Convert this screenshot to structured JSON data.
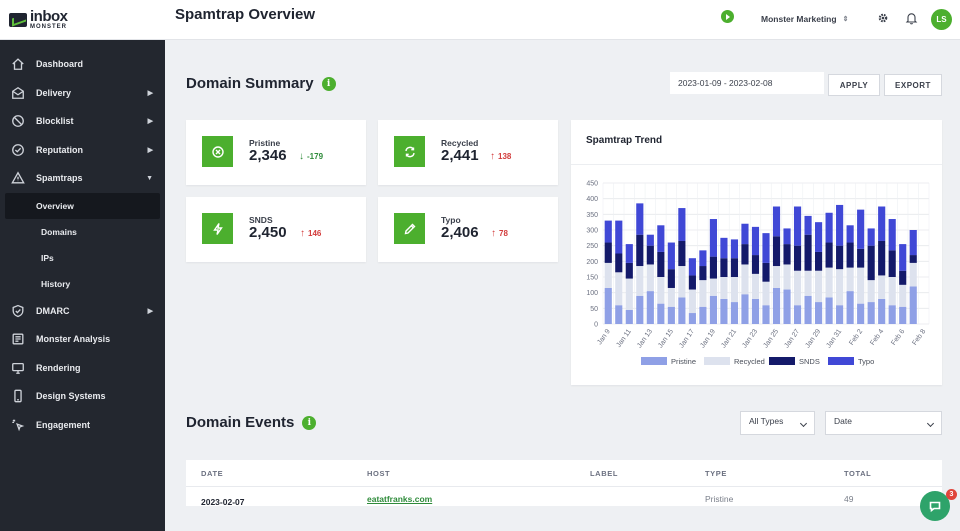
{
  "app": {
    "logo_main": "inbox",
    "logo_sub": "MONSTER",
    "page_title": "Spamtrap Overview"
  },
  "topbar": {
    "org_name": "Monster Marketing",
    "avatar_initials": "LS"
  },
  "sidebar": {
    "items": [
      {
        "label": "Dashboard",
        "icon": "home-icon"
      },
      {
        "label": "Delivery",
        "icon": "envelope-icon"
      },
      {
        "label": "Blocklist",
        "icon": "ban-icon"
      },
      {
        "label": "Reputation",
        "icon": "check-circle-icon"
      },
      {
        "label": "Spamtraps",
        "icon": "warning-icon"
      },
      {
        "label": "DMARC",
        "icon": "shield-icon"
      },
      {
        "label": "Monster Analysis",
        "icon": "analysis-icon"
      },
      {
        "label": "Rendering",
        "icon": "monitor-icon"
      },
      {
        "label": "Design Systems",
        "icon": "mobile-icon"
      },
      {
        "label": "Engagement",
        "icon": "cursor-click-icon"
      }
    ],
    "spamtrap_subitems": [
      "Overview",
      "Domains",
      "IPs",
      "History"
    ]
  },
  "summary": {
    "title": "Domain Summary",
    "date_range": "2023-01-09 - 2023-02-08",
    "apply_label": "APPLY",
    "export_label": "EXPORT",
    "cards": [
      {
        "label": "Pristine",
        "value": "2,346",
        "delta": "-179",
        "direction": "down",
        "icon": "x-circle-icon"
      },
      {
        "label": "Recycled",
        "value": "2,441",
        "delta": "138",
        "direction": "up",
        "icon": "recycle-icon"
      },
      {
        "label": "SNDS",
        "value": "2,450",
        "delta": "146",
        "direction": "up",
        "icon": "bolt-icon"
      },
      {
        "label": "Typo",
        "value": "2,406",
        "delta": "78",
        "direction": "up",
        "icon": "pencil-icon"
      }
    ]
  },
  "trend": {
    "title": "Spamtrap Trend"
  },
  "chart_data": {
    "type": "bar",
    "stacked": true,
    "title": "Spamtrap Trend",
    "x_tick_labels": [
      "Jan 9",
      "Jan 11",
      "Jan 13",
      "Jan 15",
      "Jan 17",
      "Jan 19",
      "Jan 21",
      "Jan 23",
      "Jan 25",
      "Jan 27",
      "Jan 29",
      "Jan 31",
      "Feb 2",
      "Feb 4",
      "Feb 6",
      "Feb 8"
    ],
    "categories": [
      "Jan 9",
      "Jan 10",
      "Jan 11",
      "Jan 12",
      "Jan 13",
      "Jan 14",
      "Jan 15",
      "Jan 16",
      "Jan 17",
      "Jan 18",
      "Jan 19",
      "Jan 20",
      "Jan 21",
      "Jan 22",
      "Jan 23",
      "Jan 24",
      "Jan 25",
      "Jan 26",
      "Jan 27",
      "Jan 28",
      "Jan 29",
      "Jan 30",
      "Jan 31",
      "Feb 1",
      "Feb 2",
      "Feb 3",
      "Feb 4",
      "Feb 5",
      "Feb 6",
      "Feb 7",
      "Feb 8"
    ],
    "ylim": [
      0,
      450
    ],
    "y_ticks": [
      0,
      50,
      100,
      150,
      200,
      250,
      300,
      350,
      400,
      450
    ],
    "grid": true,
    "legend_position": "bottom",
    "series": [
      {
        "name": "Pristine",
        "color": "#8fa0e6",
        "values": [
          115,
          60,
          45,
          90,
          105,
          65,
          55,
          85,
          35,
          55,
          90,
          80,
          70,
          95,
          80,
          60,
          115,
          110,
          60,
          90,
          70,
          85,
          60,
          105,
          65,
          70,
          80,
          60,
          55,
          120,
          0
        ]
      },
      {
        "name": "Recycled",
        "color": "#dde2ee",
        "values": [
          80,
          105,
          100,
          95,
          85,
          85,
          60,
          100,
          75,
          85,
          55,
          70,
          80,
          95,
          80,
          75,
          70,
          80,
          110,
          80,
          100,
          95,
          115,
          75,
          115,
          70,
          75,
          90,
          70,
          75,
          0
        ]
      },
      {
        "name": "SNDS",
        "color": "#141a6a",
        "values": [
          65,
          60,
          50,
          100,
          60,
          80,
          60,
          80,
          45,
          45,
          70,
          60,
          60,
          65,
          60,
          60,
          95,
          65,
          80,
          115,
          60,
          80,
          75,
          80,
          60,
          110,
          110,
          85,
          45,
          25,
          0
        ]
      },
      {
        "name": "Typo",
        "color": "#4048d6",
        "values": [
          70,
          105,
          60,
          100,
          35,
          85,
          85,
          105,
          55,
          50,
          120,
          65,
          60,
          65,
          90,
          95,
          95,
          50,
          125,
          60,
          95,
          95,
          130,
          55,
          125,
          55,
          110,
          100,
          85,
          80,
          0
        ]
      }
    ]
  },
  "events": {
    "title": "Domain Events",
    "type_filter": "All Types",
    "date_filter": "Date",
    "columns": [
      "DATE",
      "HOST",
      "LABEL",
      "TYPE",
      "TOTAL"
    ],
    "rows": [
      {
        "date": "2023-02-07",
        "host": "eatatfranks.com",
        "label": "",
        "type": "Pristine",
        "total": "49"
      }
    ]
  },
  "chat": {
    "badge": "3"
  }
}
